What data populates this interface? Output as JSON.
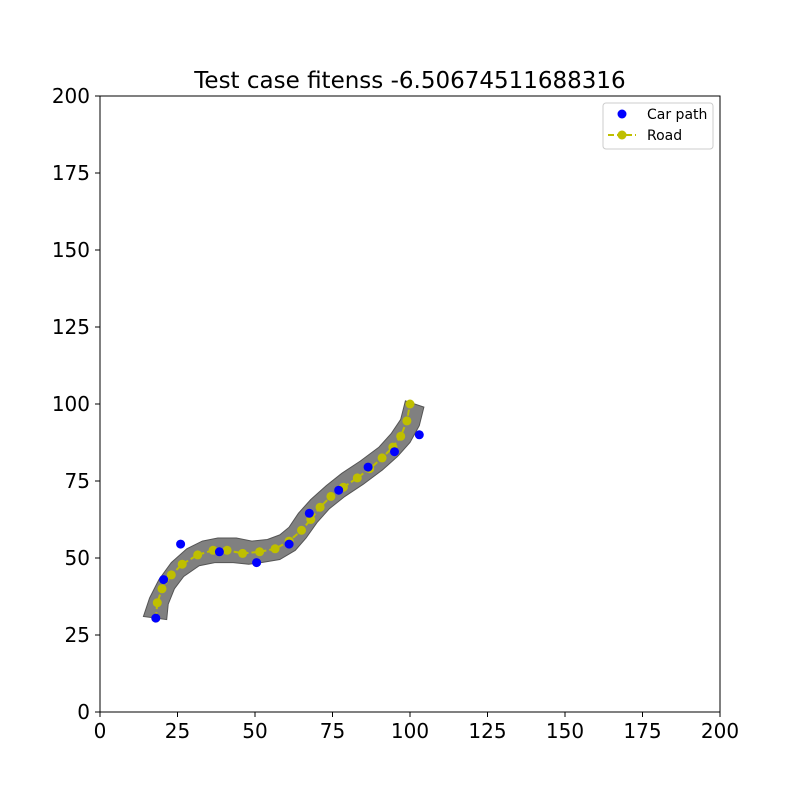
{
  "chart_data": {
    "type": "scatter",
    "title": "Test case fitenss -6.50674511688316",
    "xlabel": "",
    "ylabel": "",
    "xlim": [
      0,
      200
    ],
    "ylim": [
      0,
      200
    ],
    "xticks": [
      0,
      25,
      50,
      75,
      100,
      125,
      150,
      175,
      200
    ],
    "yticks": [
      0,
      25,
      50,
      75,
      100,
      125,
      150,
      175,
      200
    ],
    "grid": false,
    "legend_position": "top-right",
    "road_band": {
      "color": "#808080",
      "polygon": [
        [
          14.0,
          31.0
        ],
        [
          16.0,
          37.0
        ],
        [
          19.0,
          43.0
        ],
        [
          23.0,
          48.5
        ],
        [
          28.0,
          53.0
        ],
        [
          33.0,
          55.5
        ],
        [
          38.0,
          56.5
        ],
        [
          44.0,
          56.5
        ],
        [
          49.0,
          55.5
        ],
        [
          54.0,
          56.0
        ],
        [
          58.0,
          57.5
        ],
        [
          61.0,
          60.0
        ],
        [
          64.0,
          64.5
        ],
        [
          68.0,
          69.0
        ],
        [
          73.0,
          73.5
        ],
        [
          78.0,
          77.5
        ],
        [
          84.0,
          81.5
        ],
        [
          90.0,
          86.0
        ],
        [
          94.0,
          90.5
        ],
        [
          97.0,
          95.0
        ],
        [
          98.5,
          101.0
        ],
        [
          104.5,
          99.0
        ],
        [
          103.0,
          93.0
        ],
        [
          100.0,
          87.5
        ],
        [
          96.0,
          83.0
        ],
        [
          91.0,
          78.5
        ],
        [
          85.0,
          74.0
        ],
        [
          79.0,
          70.0
        ],
        [
          74.0,
          66.0
        ],
        [
          70.0,
          61.5
        ],
        [
          66.5,
          56.5
        ],
        [
          63.0,
          52.5
        ],
        [
          58.0,
          49.5
        ],
        [
          52.0,
          48.5
        ],
        [
          48.0,
          48.0
        ],
        [
          43.0,
          48.5
        ],
        [
          37.0,
          48.5
        ],
        [
          32.0,
          47.5
        ],
        [
          27.0,
          44.0
        ],
        [
          24.0,
          40.0
        ],
        [
          22.0,
          35.0
        ],
        [
          21.5,
          30.0
        ]
      ]
    },
    "series": [
      {
        "name": "Car path",
        "style": "scatter",
        "color": "#0000ff",
        "x": [
          18.0,
          20.5,
          26.0,
          38.5,
          50.5,
          61.0,
          67.5,
          77.0,
          86.5,
          95.0,
          103.0
        ],
        "y": [
          30.5,
          43.0,
          54.5,
          52.0,
          48.5,
          54.5,
          64.5,
          72.0,
          79.5,
          84.5,
          90.0
        ]
      },
      {
        "name": "Road",
        "style": "dashed-line-markers",
        "color": "#bfbf00",
        "x": [
          18.0,
          18.5,
          20.0,
          23.0,
          26.5,
          31.5,
          36.5,
          41.0,
          46.0,
          51.5,
          56.5,
          61.0,
          65.0,
          68.0,
          71.0,
          74.5,
          78.5,
          83.0,
          87.0,
          91.0,
          94.5,
          97.0,
          99.0,
          100.0
        ],
        "y": [
          30.5,
          35.5,
          40.0,
          44.5,
          48.0,
          51.0,
          52.5,
          52.5,
          51.5,
          52.0,
          53.0,
          55.5,
          59.0,
          62.5,
          66.5,
          70.0,
          73.0,
          76.0,
          79.0,
          82.5,
          86.0,
          89.5,
          94.5,
          100.0
        ]
      }
    ]
  }
}
